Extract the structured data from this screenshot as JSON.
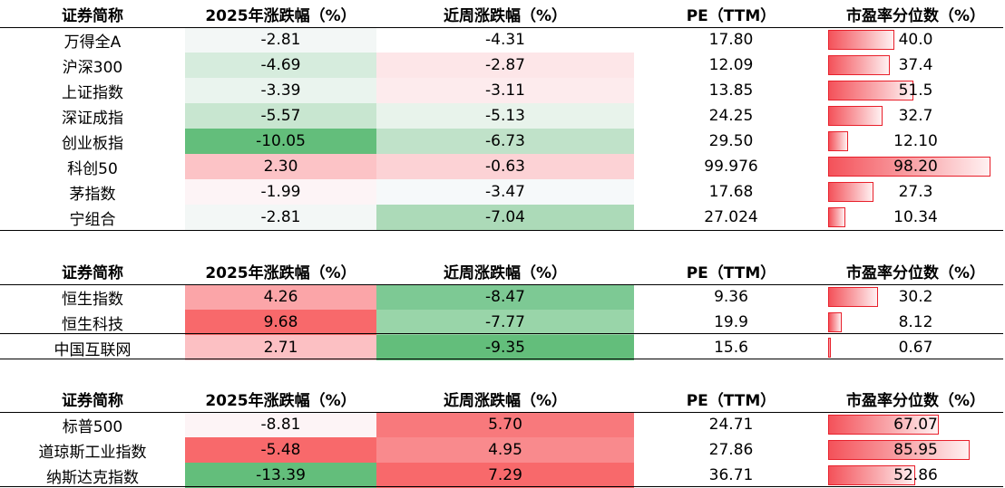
{
  "colors": {
    "positive_max": "#f8696b",
    "negative_max": "#63be7b",
    "neutral": "#fcfcff",
    "databar": "#f4525a"
  },
  "tables": [
    {
      "headers": [
        "证券简称",
        "2025年涨跌幅（%）",
        "近周涨跌幅（%）",
        "PE（TTM）",
        "市盈率分位数（%）"
      ],
      "rows": [
        {
          "name": "万得全A",
          "ytd": "-2.81",
          "week": "-4.31",
          "pe": "17.80",
          "pct": "40.0",
          "pct_num": 40.0,
          "ytd_color": "#f3f7f6",
          "week_color": "#ffffff"
        },
        {
          "name": "沪深300",
          "ytd": "-4.69",
          "week": "-2.87",
          "pe": "12.09",
          "pct": "37.4",
          "pct_num": 37.4,
          "ytd_color": "#d6ecdd",
          "week_color": "#fde6e8"
        },
        {
          "name": "上证指数",
          "ytd": "-3.39",
          "week": "-3.11",
          "pe": "13.85",
          "pct": "51.5",
          "pct_num": 51.5,
          "ytd_color": "#eaf4ee",
          "week_color": "#fdebed"
        },
        {
          "name": "深证成指",
          "ytd": "-5.57",
          "week": "-5.13",
          "pe": "24.25",
          "pct": "32.7",
          "pct_num": 32.7,
          "ytd_color": "#c8e6d0",
          "week_color": "#e8f3eb"
        },
        {
          "name": "创业板指",
          "ytd": "-10.05",
          "week": "-6.73",
          "pe": "29.50",
          "pct": "12.10",
          "pct_num": 12.1,
          "ytd_color": "#63be7b",
          "week_color": "#c0e2c9"
        },
        {
          "name": "科创50",
          "ytd": "2.30",
          "week": "-0.63",
          "pe": "99.976",
          "pct": "98.20",
          "pct_num": 98.2,
          "ytd_color": "#fcc3c6",
          "week_color": "#fcd2d5"
        },
        {
          "name": "茅指数",
          "ytd": "-1.99",
          "week": "-3.47",
          "pe": "17.68",
          "pct": "27.3",
          "pct_num": 27.3,
          "ytd_color": "#fdf4f6",
          "week_color": "#f6f9fa"
        },
        {
          "name": "宁组合",
          "ytd": "-2.81",
          "week": "-7.04",
          "pe": "27.024",
          "pct": "10.34",
          "pct_num": 10.34,
          "ytd_color": "#f3f7f6",
          "week_color": "#acdab8"
        }
      ]
    },
    {
      "headers": [
        "证券简称",
        "2025年涨跌幅（%）",
        "近周涨跌幅（%）",
        "PE（TTM）",
        "市盈率分位数（%）"
      ],
      "rows": [
        {
          "name": "恒生指数",
          "ytd": "4.26",
          "week": "-8.47",
          "pe": "9.36",
          "pct": "30.2",
          "pct_num": 30.2,
          "ytd_color": "#fba5a8",
          "week_color": "#7dc994"
        },
        {
          "name": "恒生科技",
          "ytd": "9.68",
          "week": "-7.77",
          "pe": "19.9",
          "pct": "8.12",
          "pct_num": 8.12,
          "ytd_color": "#f8696b",
          "week_color": "#99d5a9"
        },
        {
          "name": "中国互联网",
          "ytd": "2.71",
          "week": "-9.35",
          "pe": "15.6",
          "pct": "0.67",
          "pct_num": 0.67,
          "ytd_color": "#fcc0c3",
          "week_color": "#63be7b"
        }
      ]
    },
    {
      "headers": [
        "证券简称",
        "2025年涨跌幅（%）",
        "近周涨跌幅（%）",
        "PE（TTM）",
        "市盈率分位数（%）"
      ],
      "rows": [
        {
          "name": "标普500",
          "ytd": "-8.81",
          "week": "5.70",
          "pe": "24.71",
          "pct": "67.07",
          "pct_num": 67.07,
          "ytd_color": "#fdf4f6",
          "week_color": "#f8797c"
        },
        {
          "name": "道琼斯工业指数",
          "ytd": "-5.48",
          "week": "4.95",
          "pe": "27.86",
          "pct": "85.95",
          "pct_num": 85.95,
          "ytd_color": "#f8696b",
          "week_color": "#f98a8d"
        },
        {
          "name": "纳斯达克指数",
          "ytd": "-13.39",
          "week": "7.29",
          "pe": "36.71",
          "pct": "52.86",
          "pct_num": 52.86,
          "ytd_color": "#63be7b",
          "week_color": "#f8696b"
        }
      ]
    }
  ]
}
